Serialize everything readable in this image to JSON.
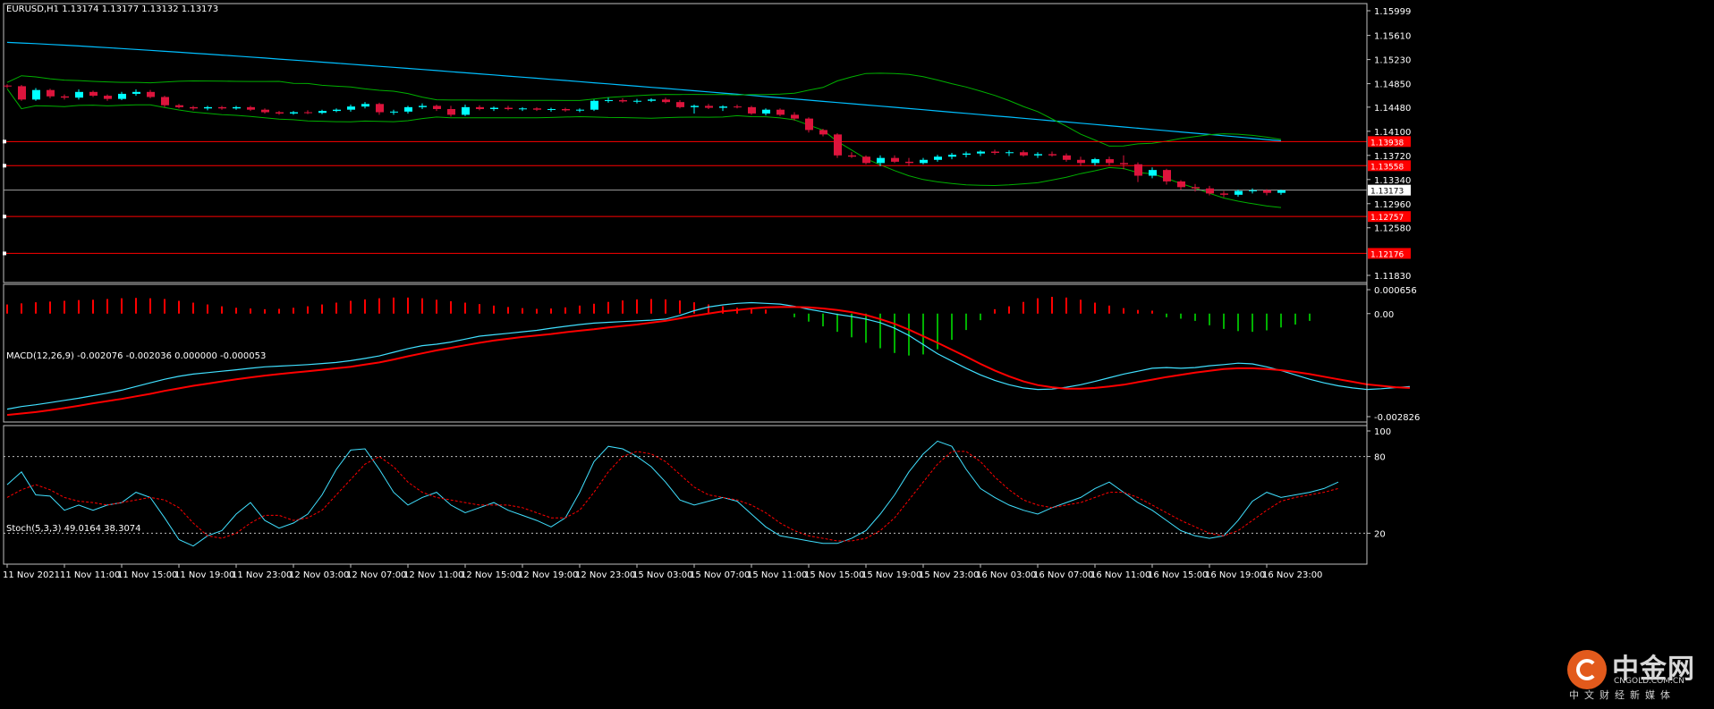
{
  "chart_data": {
    "type": "candlestick",
    "symbol_label": "EURUSD,H1  1.13174 1.13177 1.13132 1.13173",
    "x_labels": [
      "11 Nov 2021",
      "11 Nov 11:00",
      "11 Nov 15:00",
      "11 Nov 19:00",
      "11 Nov 23:00",
      "12 Nov 03:00",
      "12 Nov 07:00",
      "12 Nov 11:00",
      "12 Nov 15:00",
      "12 Nov 19:00",
      "12 Nov 23:00",
      "15 Nov 03:00",
      "15 Nov 07:00",
      "15 Nov 11:00",
      "15 Nov 15:00",
      "15 Nov 19:00",
      "15 Nov 23:00",
      "16 Nov 03:00",
      "16 Nov 07:00",
      "16 Nov 11:00",
      "16 Nov 15:00",
      "16 Nov 19:00",
      "16 Nov 23:00"
    ],
    "price": {
      "ylim": [
        1.1183,
        1.15999
      ],
      "ticks": [
        "1.15999",
        "1.15610",
        "1.15230",
        "1.14850",
        "1.14480",
        "1.14100",
        "1.13720",
        "1.13340",
        "1.12960",
        "1.12580",
        "1.11830"
      ],
      "current": "1.13173",
      "current_value": 1.13173,
      "levels": [
        {
          "value": 1.13938,
          "label": "1.13938"
        },
        {
          "value": 1.13558,
          "label": "1.13558"
        },
        {
          "value": 1.12757,
          "label": "1.12757"
        },
        {
          "value": 1.12176,
          "label": "1.12176"
        }
      ],
      "candles": [
        [
          1.1482,
          1.1484,
          1.1478,
          1.1481
        ],
        [
          1.1481,
          1.1483,
          1.1458,
          1.146
        ],
        [
          1.146,
          1.1478,
          1.1458,
          1.1475
        ],
        [
          1.1475,
          1.1477,
          1.1462,
          1.1465
        ],
        [
          1.1465,
          1.1468,
          1.146,
          1.1463
        ],
        [
          1.1463,
          1.1476,
          1.146,
          1.1472
        ],
        [
          1.1472,
          1.1474,
          1.1464,
          1.1466
        ],
        [
          1.1466,
          1.1468,
          1.1458,
          1.1461
        ],
        [
          1.1461,
          1.1472,
          1.1459,
          1.1469
        ],
        [
          1.1469,
          1.1476,
          1.1466,
          1.1472
        ],
        [
          1.1472,
          1.1475,
          1.1462,
          1.1464
        ],
        [
          1.1464,
          1.1466,
          1.1448,
          1.1451
        ],
        [
          1.1451,
          1.1453,
          1.1446,
          1.1448
        ],
        [
          1.1448,
          1.145,
          1.1443,
          1.1446
        ],
        [
          1.1446,
          1.145,
          1.1443,
          1.1448
        ],
        [
          1.1448,
          1.145,
          1.1444,
          1.1446
        ],
        [
          1.1446,
          1.145,
          1.1444,
          1.1448
        ],
        [
          1.1448,
          1.145,
          1.1442,
          1.1444
        ],
        [
          1.1444,
          1.1446,
          1.1438,
          1.144
        ],
        [
          1.144,
          1.1442,
          1.1436,
          1.1438
        ],
        [
          1.1438,
          1.1442,
          1.1436,
          1.144
        ],
        [
          1.144,
          1.1443,
          1.1437,
          1.1439
        ],
        [
          1.1439,
          1.1444,
          1.1437,
          1.1442
        ],
        [
          1.1442,
          1.1446,
          1.144,
          1.1444
        ],
        [
          1.1444,
          1.1452,
          1.1441,
          1.1449
        ],
        [
          1.1449,
          1.1456,
          1.1446,
          1.1453
        ],
        [
          1.1453,
          1.1455,
          1.1436,
          1.144
        ],
        [
          1.144,
          1.1444,
          1.1436,
          1.1441
        ],
        [
          1.1441,
          1.145,
          1.1438,
          1.1448
        ],
        [
          1.1448,
          1.1454,
          1.1445,
          1.145
        ],
        [
          1.145,
          1.1452,
          1.1442,
          1.1445
        ],
        [
          1.1445,
          1.145,
          1.1433,
          1.1436
        ],
        [
          1.1436,
          1.1452,
          1.1434,
          1.1448
        ],
        [
          1.1448,
          1.1451,
          1.1443,
          1.1445
        ],
        [
          1.1445,
          1.1449,
          1.1442,
          1.1447
        ],
        [
          1.1447,
          1.145,
          1.1443,
          1.1445
        ],
        [
          1.1445,
          1.1448,
          1.1442,
          1.1446
        ],
        [
          1.1446,
          1.1448,
          1.1442,
          1.1444
        ],
        [
          1.1444,
          1.1447,
          1.1441,
          1.1445
        ],
        [
          1.1445,
          1.1447,
          1.1441,
          1.1443
        ],
        [
          1.1443,
          1.1446,
          1.144,
          1.1444
        ],
        [
          1.1444,
          1.146,
          1.1442,
          1.1458
        ],
        [
          1.1458,
          1.1463,
          1.1455,
          1.1459
        ],
        [
          1.1459,
          1.1462,
          1.1455,
          1.1457
        ],
        [
          1.1457,
          1.1461,
          1.1454,
          1.1458
        ],
        [
          1.1458,
          1.1462,
          1.1456,
          1.146
        ],
        [
          1.146,
          1.1463,
          1.1454,
          1.1456
        ],
        [
          1.1456,
          1.1459,
          1.1446,
          1.1448
        ],
        [
          1.1448,
          1.1452,
          1.1438,
          1.145
        ],
        [
          1.145,
          1.1453,
          1.1445,
          1.1447
        ],
        [
          1.1447,
          1.1451,
          1.1442,
          1.1449
        ],
        [
          1.1449,
          1.1452,
          1.1446,
          1.1448
        ],
        [
          1.1448,
          1.145,
          1.1436,
          1.1438
        ],
        [
          1.1438,
          1.1446,
          1.1435,
          1.1444
        ],
        [
          1.1444,
          1.1446,
          1.1434,
          1.1436
        ],
        [
          1.1436,
          1.144,
          1.1427,
          1.143
        ],
        [
          1.143,
          1.1432,
          1.1408,
          1.1412
        ],
        [
          1.1412,
          1.1414,
          1.1402,
          1.1405
        ],
        [
          1.1405,
          1.1407,
          1.1368,
          1.1372
        ],
        [
          1.1372,
          1.1377,
          1.1368,
          1.137
        ],
        [
          1.137,
          1.1372,
          1.1358,
          1.136
        ],
        [
          1.136,
          1.1372,
          1.1355,
          1.1368
        ],
        [
          1.1368,
          1.1372,
          1.136,
          1.1362
        ],
        [
          1.1362,
          1.1368,
          1.1355,
          1.136
        ],
        [
          1.136,
          1.1368,
          1.1358,
          1.1365
        ],
        [
          1.1365,
          1.1373,
          1.1362,
          1.137
        ],
        [
          1.137,
          1.1376,
          1.1366,
          1.1373
        ],
        [
          1.1373,
          1.1378,
          1.1369,
          1.1375
        ],
        [
          1.1375,
          1.138,
          1.1371,
          1.1378
        ],
        [
          1.1378,
          1.1381,
          1.1373,
          1.1376
        ],
        [
          1.1376,
          1.138,
          1.1371,
          1.1377
        ],
        [
          1.1377,
          1.138,
          1.137,
          1.1372
        ],
        [
          1.1372,
          1.1377,
          1.1368,
          1.1374
        ],
        [
          1.1374,
          1.1378,
          1.137,
          1.1372
        ],
        [
          1.1372,
          1.1375,
          1.1362,
          1.1365
        ],
        [
          1.1365,
          1.137,
          1.1355,
          1.136
        ],
        [
          1.136,
          1.1368,
          1.1356,
          1.1366
        ],
        [
          1.1366,
          1.137,
          1.1356,
          1.136
        ],
        [
          1.136,
          1.1372,
          1.135,
          1.1358
        ],
        [
          1.1358,
          1.1361,
          1.133,
          1.134
        ],
        [
          1.134,
          1.1353,
          1.1336,
          1.1349
        ],
        [
          1.1349,
          1.1351,
          1.1326,
          1.1331
        ],
        [
          1.1331,
          1.1333,
          1.1318,
          1.1322
        ],
        [
          1.1322,
          1.1327,
          1.1315,
          1.132
        ],
        [
          1.132,
          1.1324,
          1.1309,
          1.1312
        ],
        [
          1.1312,
          1.1316,
          1.1306,
          1.131
        ],
        [
          1.131,
          1.1318,
          1.1307,
          1.1316
        ],
        [
          1.1316,
          1.132,
          1.1312,
          1.1317
        ],
        [
          1.1317,
          1.1319,
          1.1309,
          1.1313
        ],
        [
          1.1313,
          1.1318,
          1.131,
          1.1317
        ]
      ]
    },
    "macd": {
      "label": "MACD(12,26,9) -0.002076 -0.002036 0.000000 -0.000053",
      "ticks": [
        "0.000656",
        "0.00",
        "-0.002826"
      ],
      "ylim": [
        -0.002826,
        0.000656
      ],
      "histogram": [
        0.00025,
        0.00028,
        0.00031,
        0.00033,
        0.00035,
        0.00037,
        0.00038,
        0.0004,
        0.00042,
        0.00043,
        0.00042,
        0.0004,
        0.00035,
        0.0003,
        0.00025,
        0.0002,
        0.00016,
        0.00014,
        0.00012,
        0.00013,
        0.00016,
        0.0002,
        0.00025,
        0.0003,
        0.00035,
        0.00039,
        0.00042,
        0.00044,
        0.00044,
        0.00042,
        0.00038,
        0.00034,
        0.0003,
        0.00026,
        0.00022,
        0.00018,
        0.00015,
        0.00013,
        0.00014,
        0.00017,
        0.00022,
        0.00027,
        0.00032,
        0.00036,
        0.00039,
        0.0004,
        0.00039,
        0.00036,
        0.00031,
        0.00025,
        0.0002,
        0.00016,
        0.00014,
        0.00011,
        0.0,
        -0.0001,
        -0.00022,
        -0.00035,
        -0.0005,
        -0.00065,
        -0.0008,
        -0.00095,
        -0.00108,
        -0.00115,
        -0.00112,
        -0.00098,
        -0.00072,
        -0.00045,
        -0.00018,
        0.00012,
        0.0002,
        0.00032,
        0.00042,
        0.00046,
        0.00044,
        0.00038,
        0.0003,
        0.00022,
        0.00015,
        0.0001,
        8e-05,
        -0.0001,
        -0.00014,
        -0.0002,
        -0.00032,
        -0.00042,
        -0.00048,
        -0.0005,
        -0.00046,
        -0.00038,
        -0.0003,
        -0.0002
      ],
      "main": [
        -0.00262,
        -0.00255,
        -0.0025,
        -0.00244,
        -0.00238,
        -0.00232,
        -0.00225,
        -0.00218,
        -0.0021,
        -0.002,
        -0.0019,
        -0.0018,
        -0.00172,
        -0.00166,
        -0.00162,
        -0.00158,
        -0.00154,
        -0.0015,
        -0.00146,
        -0.00144,
        -0.00142,
        -0.0014,
        -0.00137,
        -0.00134,
        -0.00129,
        -0.00123,
        -0.00116,
        -0.00106,
        -0.00096,
        -0.00088,
        -0.00084,
        -0.00078,
        -0.0007,
        -0.00062,
        -0.00058,
        -0.00054,
        -0.0005,
        -0.00046,
        -0.0004,
        -0.00035,
        -0.0003,
        -0.00026,
        -0.00024,
        -0.00022,
        -0.0002,
        -0.00018,
        -0.00015,
        -5e-05,
        8e-05,
        0.00018,
        0.00024,
        0.00028,
        0.0003,
        0.00028,
        0.00026,
        0.0002,
        0.00012,
        5e-05,
        -2e-05,
        -8e-05,
        -0.00015,
        -0.00025,
        -0.0004,
        -0.0006,
        -0.00085,
        -0.0011,
        -0.0013,
        -0.0015,
        -0.00168,
        -0.00183,
        -0.00195,
        -0.00204,
        -0.00208,
        -0.00207,
        -0.00202,
        -0.00195,
        -0.00186,
        -0.00176,
        -0.00166,
        -0.00158,
        -0.0015,
        -0.00148,
        -0.0015,
        -0.00148,
        -0.00143,
        -0.0014,
        -0.00136,
        -0.00138,
        -0.00146,
        -0.00156,
        -0.00168,
        -0.0018,
        -0.0019,
        -0.00198,
        -0.00204,
        -0.00208,
        -0.00206,
        -0.00203,
        -0.002
      ],
      "signal": [
        -0.00278,
        -0.00274,
        -0.0027,
        -0.00265,
        -0.00259,
        -0.00253,
        -0.00246,
        -0.0024,
        -0.00234,
        -0.00227,
        -0.0022,
        -0.00212,
        -0.00205,
        -0.00198,
        -0.00192,
        -0.00186,
        -0.0018,
        -0.00175,
        -0.0017,
        -0.00166,
        -0.00162,
        -0.00158,
        -0.00154,
        -0.0015,
        -0.00146,
        -0.0014,
        -0.00134,
        -0.00126,
        -0.00117,
        -0.00109,
        -0.00101,
        -0.00094,
        -0.00087,
        -0.0008,
        -0.00074,
        -0.00069,
        -0.00064,
        -0.0006,
        -0.00056,
        -0.00051,
        -0.00047,
        -0.00043,
        -0.00038,
        -0.00034,
        -0.0003,
        -0.00025,
        -0.0002,
        -0.00013,
        -6e-05,
        0.0,
        6e-05,
        0.0001,
        0.00014,
        0.00017,
        0.00018,
        0.00018,
        0.00017,
        0.00014,
        0.0001,
        4e-05,
        -4e-05,
        -0.00015,
        -0.00028,
        -0.00044,
        -0.00062,
        -0.0008,
        -0.00099,
        -0.00118,
        -0.00138,
        -0.00156,
        -0.00172,
        -0.00186,
        -0.00196,
        -0.00202,
        -0.00206,
        -0.00206,
        -0.00204,
        -0.002,
        -0.00195,
        -0.00188,
        -0.00181,
        -0.00174,
        -0.00168,
        -0.00162,
        -0.00157,
        -0.00152,
        -0.0015,
        -0.0015,
        -0.00152,
        -0.00155,
        -0.0016,
        -0.00166,
        -0.00173,
        -0.0018,
        -0.00187,
        -0.00194,
        -0.00198,
        -0.00202,
        -0.00204
      ]
    },
    "stoch": {
      "label": "Stoch(5,3,3) 49.0164 38.3074",
      "ticks": [
        "100",
        "80",
        "20"
      ],
      "levels": [
        80,
        20
      ],
      "ylim": [
        0,
        100
      ],
      "main": [
        58,
        68,
        50,
        49,
        38,
        42,
        38,
        42,
        44,
        52,
        48,
        32,
        15,
        10,
        18,
        22,
        35,
        44,
        30,
        24,
        28,
        35,
        50,
        70,
        85,
        86,
        70,
        52,
        42,
        48,
        52,
        42,
        36,
        40,
        44,
        38,
        34,
        30,
        25,
        32,
        52,
        76,
        88,
        86,
        80,
        72,
        60,
        46,
        42,
        45,
        48,
        45,
        35,
        25,
        18,
        16,
        14,
        12,
        12,
        16,
        22,
        35,
        50,
        68,
        82,
        92,
        88,
        70,
        55,
        48,
        42,
        38,
        35,
        40,
        44,
        48,
        55,
        60,
        52,
        44,
        38,
        30,
        22,
        18,
        16,
        18,
        30,
        45,
        52,
        48,
        50,
        52,
        55,
        60
      ],
      "signal": [
        48,
        54,
        58,
        54,
        48,
        45,
        44,
        42,
        44,
        46,
        48,
        46,
        40,
        28,
        18,
        16,
        20,
        28,
        34,
        34,
        30,
        32,
        38,
        50,
        62,
        74,
        80,
        72,
        60,
        52,
        48,
        46,
        44,
        42,
        42,
        42,
        40,
        36,
        32,
        32,
        38,
        52,
        68,
        80,
        84,
        82,
        76,
        66,
        56,
        50,
        48,
        46,
        42,
        36,
        28,
        22,
        18,
        16,
        14,
        14,
        16,
        22,
        32,
        46,
        60,
        74,
        84,
        84,
        76,
        64,
        54,
        46,
        42,
        40,
        42,
        44,
        48,
        52,
        52,
        48,
        42,
        36,
        30,
        25,
        20,
        18,
        22,
        30,
        38,
        45,
        48,
        50,
        52,
        55
      ]
    }
  },
  "watermark": {
    "name": "中金网",
    "site": "CNGOLD.COM.CN",
    "sub": "中文财经新媒体",
    "accent": "#e25a1c"
  },
  "colors": {
    "bull": "#00ffff",
    "bear": "#dc143c",
    "ma_slow": "#00bfff",
    "band": "#00b000",
    "level": "#ff0000",
    "macd_hist_pos": "#ff0000",
    "macd_hist_neg": "#00b000",
    "macd_main": "#40e0ff",
    "macd_signal": "#ff0000",
    "stoch_main": "#40e0ff",
    "stoch_signal": "#ff0000"
  }
}
